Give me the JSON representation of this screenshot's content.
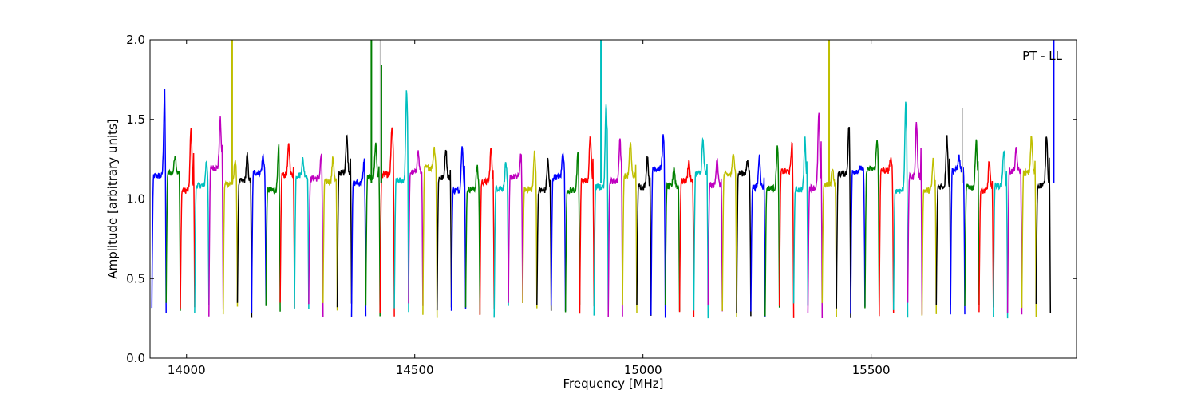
{
  "chart_data": {
    "type": "line",
    "title": "",
    "annotation": "PT - LL",
    "xlabel": "Frequency [MHz]",
    "ylabel": "Amplitude [arbitrary units]",
    "xlim": [
      13920,
      15950
    ],
    "ylim": [
      0.0,
      2.0
    ],
    "xticks": [
      14000,
      14500,
      15000,
      15500
    ],
    "xtick_labels": [
      "14000",
      "14500",
      "15000",
      "15500"
    ],
    "yticks": [
      0.0,
      0.5,
      1.0,
      1.5,
      2.0
    ],
    "ytick_labels": [
      "0.0",
      "0.5",
      "1.0",
      "1.5",
      "2.0"
    ],
    "grid": false,
    "color_cycle": [
      "#0000ff",
      "#008000",
      "#ff0000",
      "#00bfbf",
      "#bf00bf",
      "#bfbf00",
      "#000000"
    ],
    "segment_width_mhz": 31.25,
    "channel_start_mhz": 13924,
    "peaks": [
      1.69,
      1.28,
      1.44,
      1.24,
      1.5,
      1.25,
      1.27,
      1.27,
      1.33,
      1.34,
      1.25,
      1.28,
      1.26,
      1.4,
      1.25,
      1.35,
      1.46,
      1.68,
      1.3,
      1.32,
      1.32,
      1.35,
      1.2,
      1.32,
      1.23,
      1.28,
      1.3,
      1.25,
      1.3,
      1.28,
      1.4,
      1.61,
      1.38,
      1.36,
      1.27,
      1.39,
      1.2,
      1.24,
      1.37,
      1.26,
      1.3,
      1.23,
      1.27,
      1.33,
      1.37,
      1.38,
      1.53,
      1.2,
      1.46,
      1.2,
      1.37,
      1.25,
      1.6,
      1.48,
      1.25,
      1.4,
      1.27,
      1.38,
      1.24,
      1.32,
      1.31,
      1.39,
      1.41
    ],
    "spikes": [
      {
        "x": 14100,
        "y": 2.0,
        "color": "#bfbf00"
      },
      {
        "x": 14405,
        "y": 2.0,
        "color": "#008000"
      },
      {
        "x": 14425,
        "y": 2.0,
        "color": "#bfbfbf"
      },
      {
        "x": 14427,
        "y": 1.84,
        "color": "#008000"
      },
      {
        "x": 14908,
        "y": 2.0,
        "color": "#00bfbf"
      },
      {
        "x": 15408,
        "y": 2.0,
        "color": "#bfbf00"
      },
      {
        "x": 15700,
        "y": 1.57,
        "color": "#bfbfbf"
      },
      {
        "x": 15900,
        "y": 2.0,
        "color": "#0000ff"
      }
    ]
  }
}
